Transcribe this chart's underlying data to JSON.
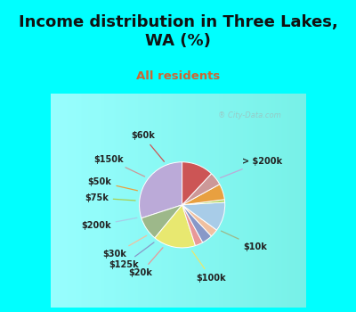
{
  "title": "Income distribution in Three Lakes,\nWA (%)",
  "subtitle": "All residents",
  "bg_cyan": "#00FFFF",
  "bg_chart": "#e0f0e8",
  "labels": [
    "> $200k",
    "$10k",
    "$100k",
    "$20k",
    "$125k",
    "$30k",
    "$200k",
    "$75k",
    "$50k",
    "$150k",
    "$60k"
  ],
  "sizes": [
    30,
    9,
    16,
    3,
    4,
    3,
    11,
    1,
    6,
    5,
    12
  ],
  "colors": [
    "#bbaad8",
    "#9db88a",
    "#e8e870",
    "#e89898",
    "#8898c8",
    "#f0c0a0",
    "#a8cce8",
    "#a8d050",
    "#e8a040",
    "#cc9898",
    "#cc5555"
  ],
  "startangle": 90,
  "label_fontsize": 7,
  "title_fontsize": 13,
  "subtitle_fontsize": 9.5,
  "title_color": "#111111",
  "subtitle_color": "#cc6633",
  "watermark": "City-Data.com"
}
